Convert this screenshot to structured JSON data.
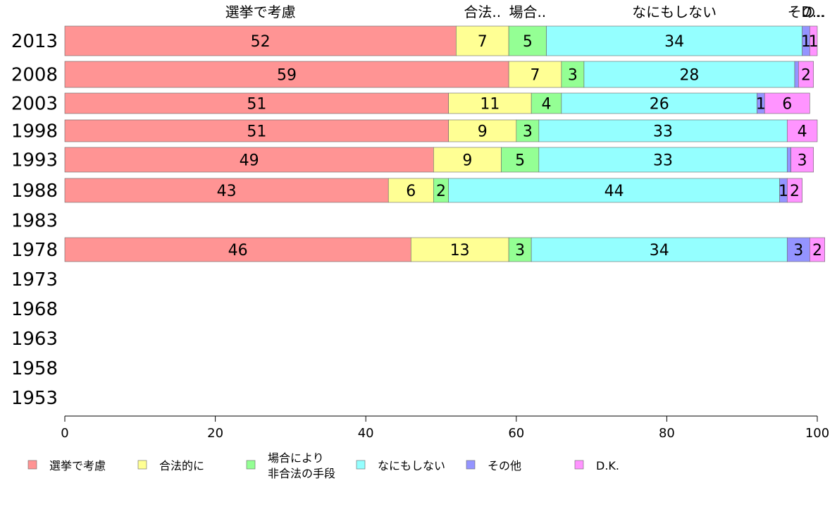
{
  "chart_data": {
    "type": "bar",
    "orientation": "horizontal",
    "stacked": true,
    "categories": [
      "2013",
      "2008",
      "2003",
      "1998",
      "1993",
      "1988",
      "1983",
      "1978",
      "1973",
      "1968",
      "1963",
      "1958",
      "1953"
    ],
    "series": [
      {
        "name": "選挙で考慮",
        "color": "#ff9494",
        "values": [
          52,
          59,
          51,
          51,
          49,
          43,
          null,
          46,
          null,
          null,
          null,
          null,
          null
        ]
      },
      {
        "name": "合法的に",
        "color": "#ffff94",
        "values": [
          7,
          7,
          11,
          9,
          9,
          6,
          null,
          13,
          null,
          null,
          null,
          null,
          null
        ]
      },
      {
        "name": "場合により非合法の手段",
        "color": "#94ff94",
        "values": [
          5,
          3,
          4,
          3,
          5,
          2,
          null,
          3,
          null,
          null,
          null,
          null,
          null
        ]
      },
      {
        "name": "なにもしない",
        "color": "#94ffff",
        "values": [
          34,
          28,
          26,
          33,
          33,
          44,
          null,
          34,
          null,
          null,
          null,
          null,
          null
        ]
      },
      {
        "name": "その他",
        "color": "#9494ff",
        "values": [
          1,
          0.5,
          1,
          0,
          0.5,
          1,
          null,
          3,
          null,
          null,
          null,
          null,
          null
        ]
      },
      {
        "name": "D.K.",
        "color": "#ff94ff",
        "values": [
          1,
          2,
          6,
          4,
          3,
          2,
          null,
          2,
          null,
          null,
          null,
          null,
          null
        ]
      }
    ],
    "data_labels": [
      [
        "52",
        "7",
        "5",
        "34",
        "1",
        "1"
      ],
      [
        "59",
        "7",
        "3",
        "28",
        "",
        "2"
      ],
      [
        "51",
        "11",
        "4",
        "26",
        "1",
        "6"
      ],
      [
        "51",
        "9",
        "3",
        "33",
        "",
        "4"
      ],
      [
        "49",
        "9",
        "5",
        "33",
        "",
        "3"
      ],
      [
        "43",
        "6",
        "2",
        "44",
        "1",
        "2"
      ],
      [],
      [
        "46",
        "13",
        "3",
        "34",
        "3",
        "2"
      ],
      [],
      [],
      [],
      [],
      []
    ],
    "top_labels": [
      "選挙で考慮",
      "合法..",
      "場合..",
      "なにもしない",
      "その..",
      "D..."
    ],
    "xlim": [
      0,
      100
    ],
    "xticks": [
      "0",
      "20",
      "40",
      "60",
      "80",
      "100"
    ],
    "legend_labels": [
      [
        "選挙で考慮"
      ],
      [
        "合法的に"
      ],
      [
        "場合により",
        "非合法の手段"
      ],
      [
        "なにもしない"
      ],
      [
        "その他"
      ],
      [
        "D.K."
      ]
    ],
    "legend_position": "bottom"
  }
}
